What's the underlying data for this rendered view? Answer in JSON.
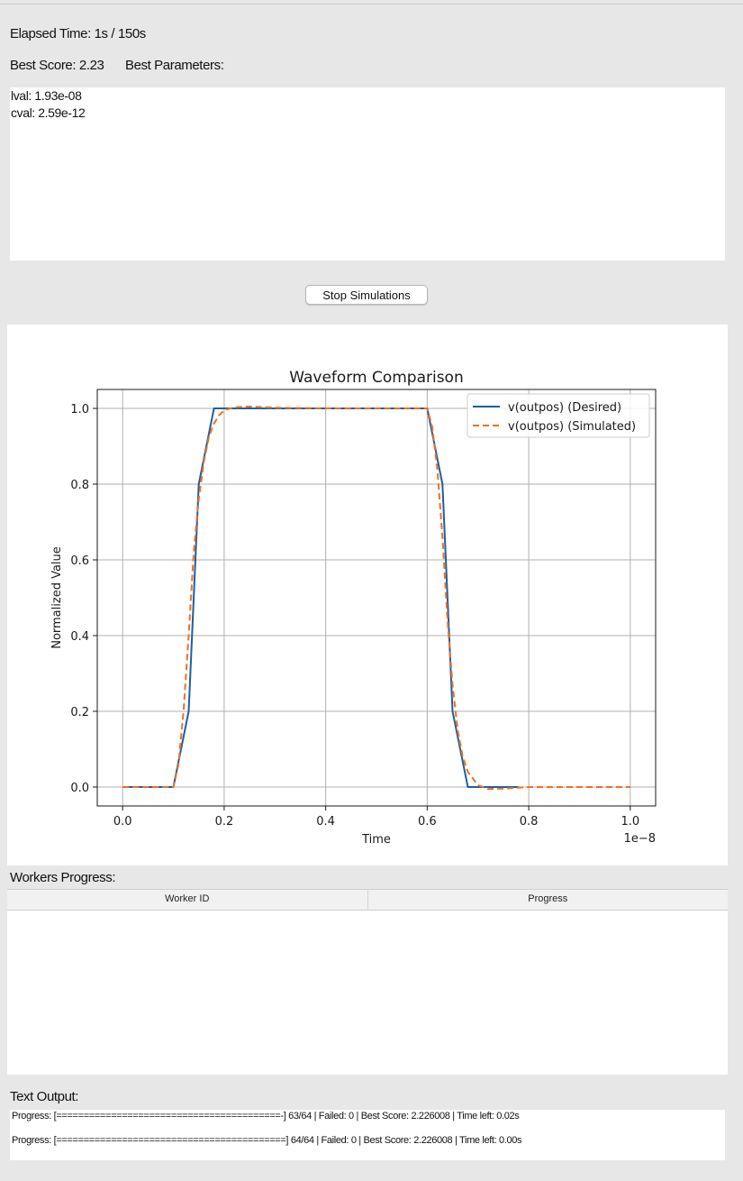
{
  "status": {
    "elapsed_text": "Elapsed Time: 1s / 150s",
    "best_score_text": "Best Score: 2.23",
    "best_params_label": "Best Parameters:"
  },
  "best_parameters": [
    "lval: 1.93e-08",
    "cval: 2.59e-12"
  ],
  "controls": {
    "stop_label": "Stop Simulations"
  },
  "chart_data": {
    "type": "line",
    "title": "Waveform Comparison",
    "xlabel": "Time",
    "ylabel": "Normalized Value",
    "x_offset_text": "1e−8",
    "xlim": [
      -0.05,
      1.05
    ],
    "ylim": [
      -0.05,
      1.05
    ],
    "xticks": [
      0.0,
      0.2,
      0.4,
      0.6,
      0.8,
      1.0
    ],
    "yticks": [
      0.0,
      0.2,
      0.4,
      0.6,
      0.8,
      1.0
    ],
    "xtick_labels": [
      "0.0",
      "0.2",
      "0.4",
      "0.6",
      "0.8",
      "1.0"
    ],
    "ytick_labels": [
      "0.0",
      "0.2",
      "0.4",
      "0.6",
      "0.8",
      "1.0"
    ],
    "grid": true,
    "legend_position": "top-right",
    "series": [
      {
        "name": "v(outpos) (Desired)",
        "color": "#1f5fa0",
        "style": "solid",
        "points": [
          [
            0.0,
            0.0
          ],
          [
            0.1,
            0.0
          ],
          [
            0.13,
            0.2
          ],
          [
            0.15,
            0.8
          ],
          [
            0.18,
            1.0
          ],
          [
            0.6,
            1.0
          ],
          [
            0.63,
            0.8
          ],
          [
            0.65,
            0.2
          ],
          [
            0.68,
            0.0
          ],
          [
            0.78,
            0.0
          ]
        ]
      },
      {
        "name": "v(outpos) (Simulated)",
        "color": "#f07020",
        "style": "dashed",
        "points": [
          [
            0.0,
            0.0
          ],
          [
            0.1,
            0.0
          ],
          [
            0.11,
            0.06
          ],
          [
            0.12,
            0.2
          ],
          [
            0.13,
            0.4
          ],
          [
            0.14,
            0.62
          ],
          [
            0.15,
            0.76
          ],
          [
            0.16,
            0.86
          ],
          [
            0.17,
            0.925
          ],
          [
            0.18,
            0.96
          ],
          [
            0.19,
            0.982
          ],
          [
            0.2,
            0.995
          ],
          [
            0.22,
            1.003
          ],
          [
            0.25,
            1.005
          ],
          [
            0.3,
            1.002
          ],
          [
            0.4,
            1.0
          ],
          [
            0.6,
            1.0
          ],
          [
            0.61,
            0.95
          ],
          [
            0.62,
            0.84
          ],
          [
            0.63,
            0.66
          ],
          [
            0.64,
            0.44
          ],
          [
            0.65,
            0.27
          ],
          [
            0.66,
            0.15
          ],
          [
            0.67,
            0.08
          ],
          [
            0.68,
            0.04
          ],
          [
            0.7,
            0.005
          ],
          [
            0.72,
            -0.005
          ],
          [
            0.75,
            -0.004
          ],
          [
            0.8,
            0.0
          ],
          [
            1.0,
            0.0
          ]
        ]
      }
    ]
  },
  "workers": {
    "title": "Workers Progress:",
    "columns": [
      "Worker ID",
      "Progress"
    ]
  },
  "output": {
    "title": "Text Output:",
    "lines": [
      "Progress: [=========================================-] 63/64 | Failed: 0 | Best Score: 2.226008 | Time left: 0.02s",
      "Progress: [==========================================] 64/64 | Failed: 0 | Best Score: 2.226008 | Time left: 0.00s"
    ]
  }
}
